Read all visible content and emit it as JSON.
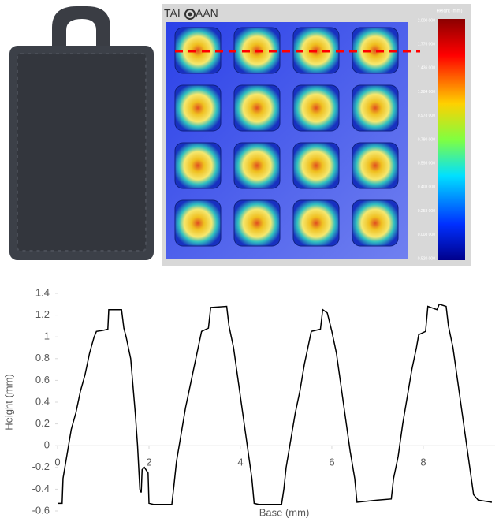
{
  "heightmap": {
    "logo_left": "TAI",
    "logo_right": "AAN",
    "colorbar_title": "Height (mm)",
    "colorbar_labels": [
      "2.000 000",
      "1.776 000",
      "1.436 000",
      "1.284 000",
      "0.978 000",
      "0.780 000",
      "0.598 000",
      "0.408 000",
      "0.258 000",
      "0.008 000",
      "-0.520 000"
    ]
  },
  "chart_data": {
    "type": "line",
    "xlabel": "Base (mm)",
    "ylabel": "Height (mm)",
    "xlim": [
      0,
      9.57
    ],
    "xticks": [
      0,
      2,
      4,
      6,
      8
    ],
    "ylim": [
      -0.6,
      1.4
    ],
    "yticks": [
      -0.6,
      -0.4,
      -0.2,
      0,
      0.2,
      0.4,
      0.6,
      0.8,
      1,
      1.2,
      1.4
    ],
    "x": [
      0,
      0.1,
      0.12,
      0.2,
      0.3,
      0.4,
      0.5,
      0.6,
      0.7,
      0.8,
      0.85,
      1.0,
      1.1,
      1.12,
      1.4,
      1.45,
      1.5,
      1.6,
      1.65,
      1.7,
      1.75,
      1.8,
      1.83,
      1.85,
      1.9,
      1.98,
      2.0,
      2.1,
      2.5,
      2.55,
      2.6,
      2.7,
      2.8,
      2.9,
      3.0,
      3.1,
      3.15,
      3.3,
      3.35,
      3.7,
      3.75,
      3.85,
      3.95,
      4.05,
      4.15,
      4.25,
      4.3,
      4.4,
      4.9,
      4.95,
      5.0,
      5.1,
      5.2,
      5.3,
      5.4,
      5.5,
      5.55,
      5.75,
      5.8,
      5.9,
      6.0,
      6.1,
      6.2,
      6.3,
      6.4,
      6.5,
      6.55,
      7.0,
      7.3,
      7.35,
      7.45,
      7.55,
      7.65,
      7.75,
      7.85,
      7.9,
      8.05,
      8.1,
      8.3,
      8.35,
      8.5,
      8.55,
      8.65,
      8.75,
      8.85,
      8.95,
      9.05,
      9.1,
      9.2,
      9.5
    ],
    "series": [
      {
        "color": "#000000",
        "values": [
          -0.53,
          -0.53,
          -0.3,
          -0.1,
          0.15,
          0.3,
          0.5,
          0.65,
          0.85,
          1.0,
          1.05,
          1.06,
          1.07,
          1.25,
          1.25,
          1.08,
          1.0,
          0.8,
          0.55,
          0.3,
          0.0,
          -0.4,
          -0.43,
          -0.22,
          -0.2,
          -0.25,
          -0.53,
          -0.54,
          -0.54,
          -0.35,
          -0.15,
          0.1,
          0.35,
          0.55,
          0.75,
          0.95,
          1.05,
          1.08,
          1.27,
          1.28,
          1.1,
          0.9,
          0.6,
          0.3,
          0.0,
          -0.3,
          -0.53,
          -0.54,
          -0.54,
          -0.4,
          -0.2,
          0.05,
          0.3,
          0.5,
          0.75,
          0.95,
          1.05,
          1.07,
          1.25,
          1.22,
          1.05,
          0.85,
          0.55,
          0.25,
          -0.05,
          -0.3,
          -0.52,
          -0.5,
          -0.49,
          -0.3,
          -0.1,
          0.2,
          0.45,
          0.7,
          0.9,
          1.02,
          1.05,
          1.28,
          1.25,
          1.3,
          1.28,
          1.1,
          0.9,
          0.6,
          0.3,
          0.0,
          -0.3,
          -0.45,
          -0.5,
          -0.52
        ]
      }
    ]
  }
}
